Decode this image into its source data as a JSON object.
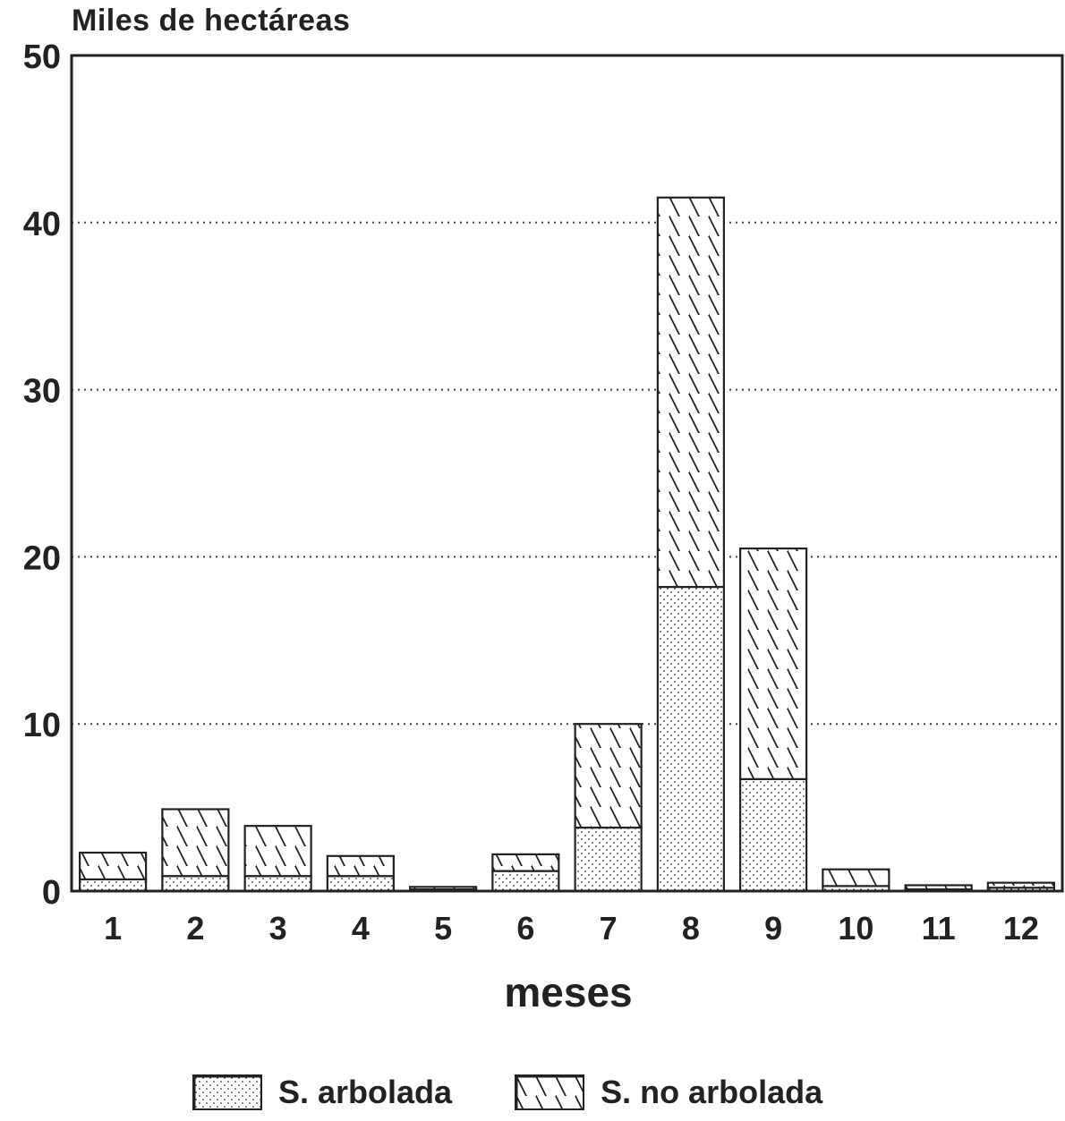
{
  "chart_data": {
    "type": "bar",
    "stacked": true,
    "ytitle": "Miles de hectáreas",
    "xlabel": "meses",
    "ylim": [
      0,
      50
    ],
    "yticks": [
      0,
      10,
      20,
      30,
      40,
      50
    ],
    "grid": "horizontal dotted",
    "categories": [
      "1",
      "2",
      "3",
      "4",
      "5",
      "6",
      "7",
      "8",
      "9",
      "10",
      "11",
      "12"
    ],
    "series": [
      {
        "name": "S. arbolada",
        "pattern": "dots",
        "values": [
          0.7,
          0.9,
          0.9,
          0.9,
          0.1,
          1.2,
          3.8,
          18.2,
          6.7,
          0.3,
          0.1,
          0.2
        ]
      },
      {
        "name": "S. no arbolada",
        "pattern": "diagonal-hatch",
        "values": [
          1.6,
          4.0,
          3.0,
          1.2,
          0.15,
          1.0,
          6.2,
          23.3,
          13.8,
          1.0,
          0.25,
          0.3
        ]
      }
    ],
    "legend_position": "bottom",
    "colors": {
      "ink": "#222222",
      "fill": "#ffffff"
    }
  }
}
